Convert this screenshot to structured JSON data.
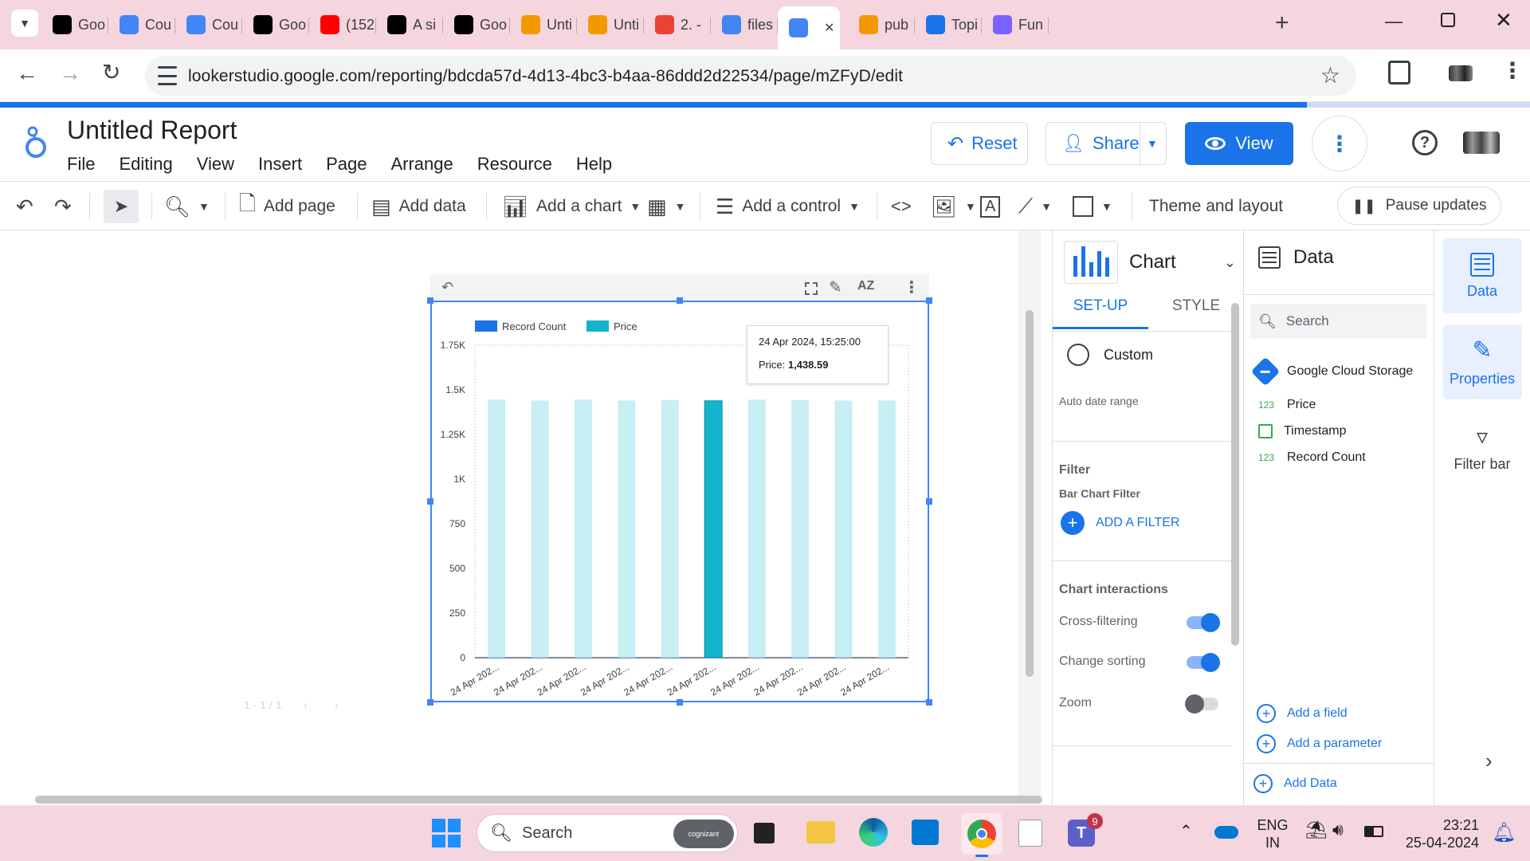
{
  "browser": {
    "tabs": [
      {
        "title": "Goo",
        "icon": "a-letter-icon"
      },
      {
        "title": "Cou",
        "icon": "cog-logo-icon"
      },
      {
        "title": "Cou",
        "icon": "cog-logo-icon"
      },
      {
        "title": "Goo",
        "icon": "medium-icon"
      },
      {
        "title": "(152",
        "icon": "youtube-icon"
      },
      {
        "title": "A si",
        "icon": "medium-icon"
      },
      {
        "title": "Goo",
        "icon": "td-icon"
      },
      {
        "title": "Unti",
        "icon": "looker-loop-icon"
      },
      {
        "title": "Unti",
        "icon": "looker-loop-icon"
      },
      {
        "title": "2. -",
        "icon": "gmail-icon"
      },
      {
        "title": "files",
        "icon": "google-g-icon"
      },
      {
        "title": "",
        "icon": "looker-studio-icon"
      },
      {
        "title": "pub",
        "icon": "looker-loop-icon"
      },
      {
        "title": "Topi",
        "icon": "spark-icon"
      },
      {
        "title": "Fun",
        "icon": "brackets-icon"
      }
    ],
    "url": "lookerstudio.google.com/reporting/bdcda57d-4d13-4bc3-b4aa-86ddd2d22534/page/mZFyD/edit"
  },
  "app": {
    "title": "Untitled Report",
    "menu": [
      "File",
      "Editing",
      "View",
      "Insert",
      "Page",
      "Arrange",
      "Resource",
      "Help"
    ],
    "reset_label": "Reset",
    "share_label": "Share",
    "view_label": "View"
  },
  "toolbar": {
    "add_page": "Add page",
    "add_data": "Add data",
    "add_chart": "Add a chart",
    "add_control": "Add a control",
    "theme": "Theme and layout",
    "pause": "Pause updates"
  },
  "canvas": {
    "pager": "1 - 1 / 1"
  },
  "chart_data": {
    "type": "bar",
    "legend": [
      "Record Count",
      "Price"
    ],
    "legend_colors": [
      "#1a73e8",
      "#12b5cb"
    ],
    "categories": [
      "24 Apr 202...",
      "24 Apr 202...",
      "24 Apr 202...",
      "24 Apr 202...",
      "24 Apr 202...",
      "24 Apr 202...",
      "24 Apr 202...",
      "24 Apr 202...",
      "24 Apr 202...",
      "24 Apr 202..."
    ],
    "series": [
      {
        "name": "Record Count",
        "values": [
          1,
          1,
          1,
          1,
          1,
          1,
          1,
          1,
          1,
          1
        ]
      },
      {
        "name": "Price",
        "values": [
          1445,
          1440,
          1445,
          1440,
          1443,
          1438.59,
          1445,
          1442,
          1440,
          1440
        ]
      }
    ],
    "highlight_index": 5,
    "yticks": [
      "0",
      "250",
      "500",
      "750",
      "1K",
      "1.25K",
      "1.5K",
      "1.75K"
    ],
    "ylim": [
      0,
      1750
    ],
    "tooltip": {
      "date": "24 Apr 2024, 15:25:00",
      "label": "Price:",
      "value": "1,438.59"
    }
  },
  "properties": {
    "header": "Chart",
    "tabs": [
      "SET-UP",
      "STYLE"
    ],
    "custom_label": "Custom",
    "auto_date_range": "Auto date range",
    "filter_heading": "Filter",
    "filter_sub": "Bar Chart Filter",
    "add_filter": "ADD A FILTER",
    "interactions_heading": "Chart interactions",
    "cross_filtering": "Cross-filtering",
    "change_sorting": "Change sorting",
    "zoom": "Zoom"
  },
  "data_panel": {
    "header": "Data",
    "search_placeholder": "Search",
    "source": "Google Cloud Storage",
    "fields": [
      {
        "type": "123",
        "name": "Price"
      },
      {
        "type": "date",
        "name": "Timestamp"
      },
      {
        "type": "123",
        "name": "Record Count"
      }
    ],
    "add_field": "Add a field",
    "add_parameter": "Add a parameter",
    "add_data": "Add Data"
  },
  "rail": {
    "data": "Data",
    "properties": "Properties",
    "filter_bar": "Filter bar"
  },
  "taskbar": {
    "search_label": "Search",
    "search_badge": "cognizant",
    "lang_top": "ENG",
    "lang_bottom": "IN",
    "time": "23:21",
    "date": "25-04-2024",
    "teams_badge": "9"
  },
  "colors": {
    "accent": "#1a73e8",
    "bar_light": "#c7eef3",
    "bar_dark": "#12b5cb",
    "chrome_pink": "#f5d6de"
  }
}
